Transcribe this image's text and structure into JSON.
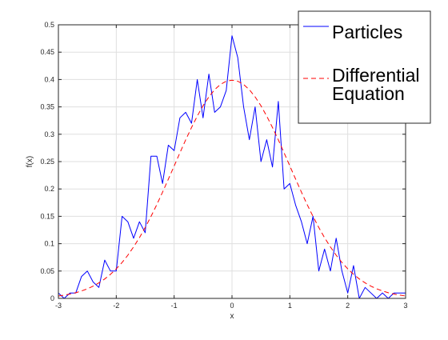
{
  "chart_data": {
    "type": "line",
    "xlabel": "x",
    "ylabel": "f(x)",
    "xlim": [
      -3,
      3
    ],
    "ylim": [
      0,
      0.5
    ],
    "grid": true,
    "legend_position": "top-right",
    "x_ticks": [
      "-3",
      "-2",
      "-1",
      "0",
      "1",
      "2",
      "3"
    ],
    "y_ticks": [
      "0",
      "0.05",
      "0.1",
      "0.15",
      "0.2",
      "0.25",
      "0.3",
      "0.35",
      "0.4",
      "0.45",
      "0.5"
    ],
    "series": [
      {
        "name": "Particles",
        "style": "solid",
        "color": "#0000ff",
        "x": [
          -3.0,
          -2.9,
          -2.8,
          -2.7,
          -2.6,
          -2.5,
          -2.4,
          -2.3,
          -2.2,
          -2.1,
          -2.0,
          -1.9,
          -1.8,
          -1.7,
          -1.6,
          -1.5,
          -1.4,
          -1.3,
          -1.2,
          -1.1,
          -1.0,
          -0.9,
          -0.8,
          -0.7,
          -0.6,
          -0.5,
          -0.4,
          -0.3,
          -0.2,
          -0.1,
          0.0,
          0.1,
          0.2,
          0.3,
          0.4,
          0.5,
          0.6,
          0.7,
          0.8,
          0.9,
          1.0,
          1.1,
          1.2,
          1.3,
          1.4,
          1.5,
          1.6,
          1.7,
          1.8,
          1.9,
          2.0,
          2.1,
          2.2,
          2.3,
          2.4,
          2.5,
          2.6,
          2.7,
          2.8,
          2.9,
          3.0
        ],
        "y": [
          0.01,
          0.0,
          0.01,
          0.01,
          0.04,
          0.05,
          0.03,
          0.02,
          0.07,
          0.05,
          0.05,
          0.15,
          0.14,
          0.11,
          0.14,
          0.12,
          0.26,
          0.26,
          0.21,
          0.28,
          0.27,
          0.33,
          0.34,
          0.32,
          0.4,
          0.33,
          0.41,
          0.34,
          0.35,
          0.38,
          0.48,
          0.44,
          0.35,
          0.29,
          0.35,
          0.25,
          0.29,
          0.24,
          0.36,
          0.2,
          0.21,
          0.17,
          0.14,
          0.1,
          0.15,
          0.05,
          0.09,
          0.05,
          0.11,
          0.05,
          0.01,
          0.06,
          0.0,
          0.02,
          0.01,
          0.0,
          0.01,
          0.0,
          0.01,
          0.01,
          0.01
        ]
      },
      {
        "name": "Differential Equation",
        "style": "dashed",
        "color": "#ff0000",
        "x": [
          -3.0,
          -2.9,
          -2.8,
          -2.7,
          -2.6,
          -2.5,
          -2.4,
          -2.3,
          -2.2,
          -2.1,
          -2.0,
          -1.9,
          -1.8,
          -1.7,
          -1.6,
          -1.5,
          -1.4,
          -1.3,
          -1.2,
          -1.1,
          -1.0,
          -0.9,
          -0.8,
          -0.7,
          -0.6,
          -0.5,
          -0.4,
          -0.3,
          -0.2,
          -0.1,
          0.0,
          0.1,
          0.2,
          0.3,
          0.4,
          0.5,
          0.6,
          0.7,
          0.8,
          0.9,
          1.0,
          1.1,
          1.2,
          1.3,
          1.4,
          1.5,
          1.6,
          1.7,
          1.8,
          1.9,
          2.0,
          2.1,
          2.2,
          2.3,
          2.4,
          2.5,
          2.6,
          2.7,
          2.8,
          2.9,
          3.0
        ],
        "y": [
          0.0044,
          0.006,
          0.0079,
          0.0104,
          0.0136,
          0.0175,
          0.0224,
          0.0283,
          0.0355,
          0.044,
          0.054,
          0.0656,
          0.079,
          0.0941,
          0.1109,
          0.1295,
          0.1497,
          0.1714,
          0.1942,
          0.2179,
          0.242,
          0.2661,
          0.2897,
          0.3123,
          0.3332,
          0.3521,
          0.3683,
          0.3814,
          0.391,
          0.397,
          0.3989,
          0.397,
          0.391,
          0.3814,
          0.3683,
          0.3521,
          0.3332,
          0.3123,
          0.2897,
          0.2661,
          0.242,
          0.2179,
          0.1942,
          0.1714,
          0.1497,
          0.1295,
          0.1109,
          0.0941,
          0.079,
          0.0656,
          0.054,
          0.044,
          0.0355,
          0.0283,
          0.0224,
          0.0175,
          0.0136,
          0.0104,
          0.0079,
          0.006,
          0.0044
        ]
      }
    ],
    "legend": [
      {
        "lines": [
          "Particles"
        ],
        "style": "solid",
        "color": "#0000ff"
      },
      {
        "lines": [
          "Differential",
          "Equation"
        ],
        "style": "dashed",
        "color": "#ff0000"
      }
    ]
  }
}
